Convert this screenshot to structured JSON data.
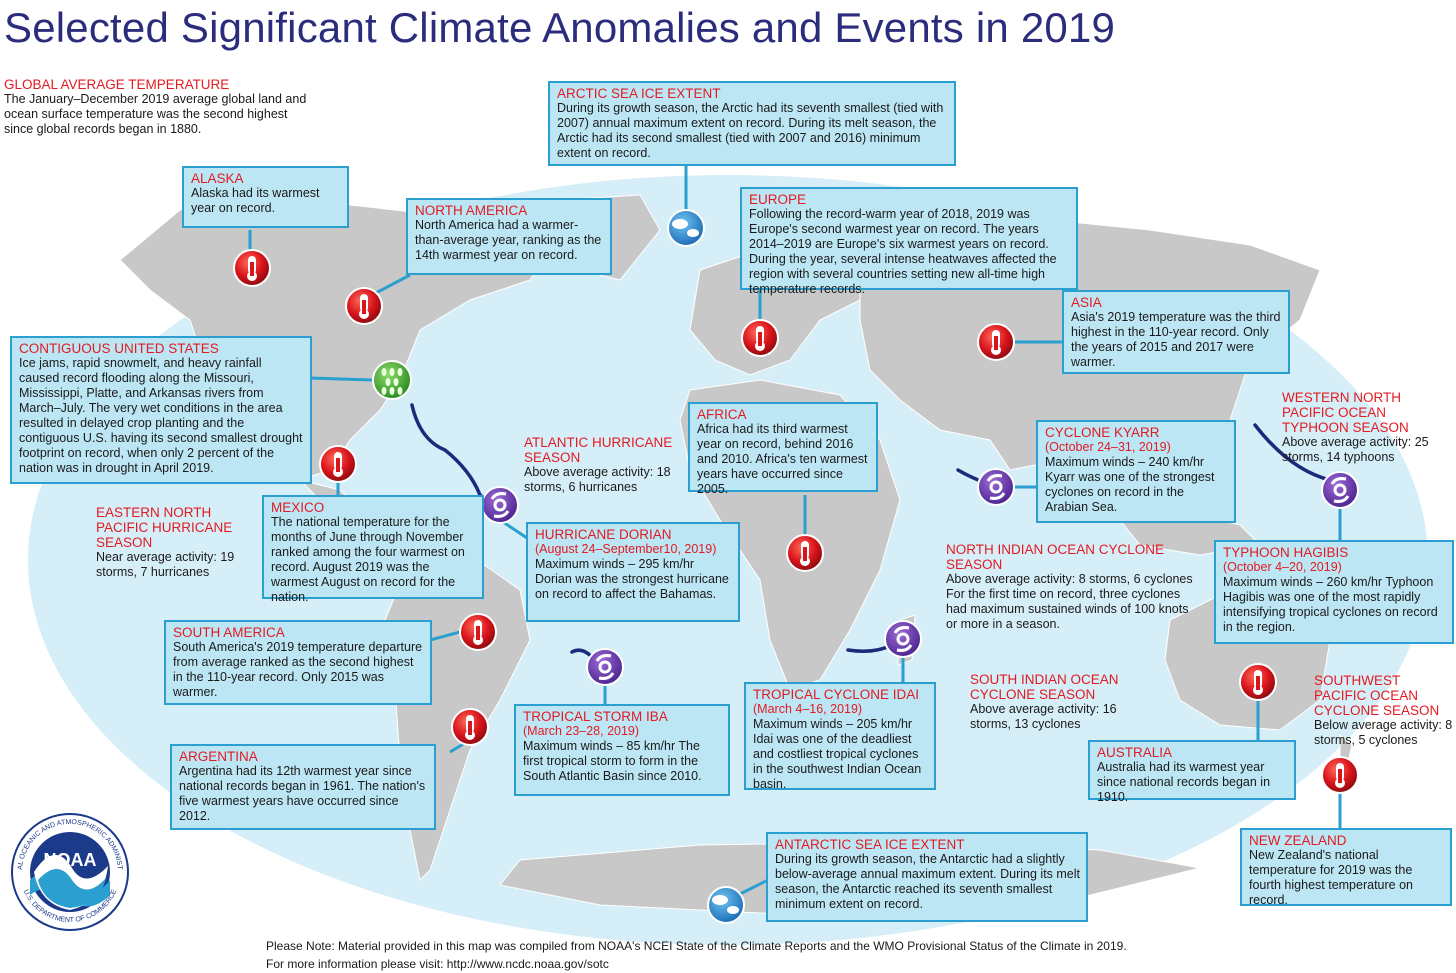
{
  "title": "Selected Significant Climate Anomalies and Events in 2019",
  "colors": {
    "ocean": "#d6eef8",
    "land": "#c8c8c8",
    "heading": "#e21b22",
    "title": "#2b2c7c",
    "box_fill": "#bde6f4",
    "box_border": "#2a9fd0",
    "track": "#1b2a7a"
  },
  "callouts": {
    "global": {
      "heading": "GLOBAL AVERAGE TEMPERATURE",
      "text": "The January–December 2019 average global land and ocean surface temperature was the second highest since global records began in 1880."
    },
    "arctic": {
      "heading": "ARCTIC SEA ICE EXTENT",
      "text": "During its growth season, the Arctic had its seventh smallest (tied with 2007) annual maximum extent on record. During its melt season, the Arctic had its second smallest (tied with 2007 and 2016) minimum extent on record."
    },
    "alaska": {
      "heading": "ALASKA",
      "text": "Alaska had its warmest year on record."
    },
    "north_america": {
      "heading": "NORTH AMERICA",
      "text": "North America had a warmer-than-average year, ranking as the 14th warmest year on record."
    },
    "europe": {
      "heading": "EUROPE",
      "text": "Following the record-warm year of 2018, 2019 was Europe's second warmest year on record.  The years 2014–2019 are Europe's six warmest years on record. During the year, several intense heatwaves affected the region with several countries setting new all-time high temperature records."
    },
    "asia": {
      "heading": "ASIA",
      "text": "Asia's 2019 temperature was the third highest in the 110-year record. Only the years of 2015 and 2017 were warmer."
    },
    "contiguous_us": {
      "heading": "CONTIGUOUS UNITED STATES",
      "text": "Ice jams, rapid snowmelt, and heavy rainfall caused record flooding along the Missouri, Mississippi, Platte, and Arkansas rivers from March–July. The very wet conditions in the area resulted in delayed crop planting and the contiguous U.S. having its second smallest drought footprint on record, when only 2 percent of the nation was in drought in April 2019."
    },
    "western_pacific": {
      "heading": "WESTERN NORTH PACIFIC OCEAN TYPHOON SEASON",
      "text": "Above average activity: 25 storms, 14 typhoons"
    },
    "atlantic_hurricane": {
      "heading": "ATLANTIC HURRICANE SEASON",
      "text": "Above average activity: 18 storms, 6 hurricanes"
    },
    "africa": {
      "heading": "AFRICA",
      "text": "Africa had its third warmest year on record, behind 2016 and 2010. Africa's ten warmest years have occurred since 2005."
    },
    "kyarr": {
      "heading": "CYCLONE KYARR",
      "dates": "(October 24–31, 2019)",
      "text": "Maximum winds – 240 km/hr Kyarr was one of the strongest cyclones on record in the Arabian Sea."
    },
    "eastern_pacific": {
      "heading": "EASTERN NORTH PACIFIC HURRICANE SEASON",
      "text": "Near average activity: 19 storms, 7 hurricanes"
    },
    "mexico": {
      "heading": "MEXICO",
      "text": "The national temperature for the months of June through November ranked among the four warmest on record. August 2019 was the warmest August on record for the nation."
    },
    "dorian": {
      "heading": "HURRICANE DORIAN",
      "dates": "(August 24–September10, 2019)",
      "text": "Maximum winds – 295 km/hr Dorian was the strongest hurricane on record to affect the Bahamas."
    },
    "north_indian": {
      "heading": "NORTH INDIAN OCEAN CYCLONE SEASON",
      "text": "Above average activity: 8 storms, 6 cyclones For the first time on record, three cyclones had maximum sustained winds of 100 knots or more in a season."
    },
    "hagibis": {
      "heading": "TYPHOON HAGIBIS",
      "dates": "(October 4–20, 2019)",
      "text": "Maximum winds – 260 km/hr Typhoon Hagibis was one of the most rapidly intensifying tropical cyclones on record in the region."
    },
    "south_america": {
      "heading": "SOUTH AMERICA",
      "text": "South America's 2019 temperature departure from average ranked as the second highest in the 110-year record. Only 2015 was warmer."
    },
    "south_indian": {
      "heading": "SOUTH INDIAN OCEAN CYCLONE SEASON",
      "text": "Above average activity: 16 storms, 13 cyclones"
    },
    "idai": {
      "heading": "TROPICAL CYCLONE IDAI",
      "dates": "(March 4–16, 2019)",
      "text": "Maximum winds – 205 km/hr Idai was one of the deadliest and costliest tropical cyclones in the southwest Indian Ocean basin."
    },
    "iba": {
      "heading": "TROPICAL STORM IBA",
      "dates": "(March 23–28, 2019)",
      "text": "Maximum winds – 85 km/hr The first tropical storm to form in the South Atlantic Basin since 2010."
    },
    "southwest_pacific": {
      "heading": "SOUTHWEST PACIFIC OCEAN CYCLONE SEASON",
      "text": "Below average activity: 8 storms, 5 cyclones"
    },
    "argentina": {
      "heading": "ARGENTINA",
      "text": "Argentina had its 12th warmest year since national records began in 1961.  The nation's five warmest years have occurred since 2012."
    },
    "australia": {
      "heading": "AUSTRALIA",
      "text": "Australia had its warmest year since national records began in 1910."
    },
    "antarctic": {
      "heading": "ANTARCTIC SEA ICE EXTENT",
      "text": "During its growth season, the Antarctic had a slightly below-average annual maximum extent. During its melt season, the Antarctic reached its seventh smallest minimum extent on record."
    },
    "new_zealand": {
      "heading": "NEW ZEALAND",
      "text": "New Zealand's national temperature for 2019 was the fourth highest temperature on record."
    }
  },
  "footer": {
    "note": "Please Note: Material provided in this map was compiled from NOAA's NCEI State of the Climate Reports and the WMO Provisional Status of the Climate in 2019.",
    "more": "For more information please visit: http://www.ncdc.noaa.gov/sotc"
  },
  "logo": {
    "name": "NOAA",
    "ring_top": "NATIONAL OCEANIC AND ATMOSPHERIC ADMINISTRATION",
    "ring_bottom": "U.S. DEPARTMENT OF COMMERCE"
  },
  "icons": [
    "thermometer-warm-icon",
    "sea-ice-icon",
    "rain-flood-icon",
    "tropical-cyclone-icon"
  ]
}
